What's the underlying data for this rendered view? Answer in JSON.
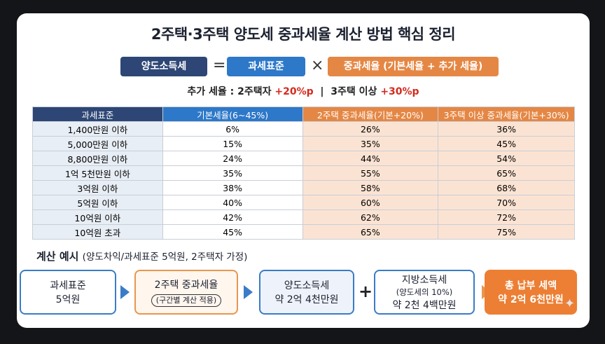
{
  "title": "2주택·3주택 양도세 중과세율 계산 방법 핵심 정리",
  "formula": {
    "left": "양도소득세",
    "eq": "=",
    "mid": "과세표준",
    "times": "×",
    "right": "중과세율 (기본세율 + 추가 세율)",
    "colors": {
      "left": "#2d4675",
      "mid": "#2d78c8",
      "right": "#e58744"
    }
  },
  "extra": {
    "prefix": "추가 세율 : 2주택자",
    "two_rate": "+20%p",
    "sep": "|",
    "three_label": "3주택 이상",
    "three_rate": "+30%p"
  },
  "table": {
    "headers": [
      "과세표준",
      "기본세율(6~45%)",
      "2주택 중과세율(기본+20%)",
      "3주택 이상 중과세율(기본+30%)"
    ],
    "rows": [
      [
        "1,400만원 이하",
        "6%",
        "26%",
        "36%"
      ],
      [
        "5,000만원 이하",
        "15%",
        "35%",
        "45%"
      ],
      [
        "8,800만원 이하",
        "24%",
        "44%",
        "54%"
      ],
      [
        "1억 5천만원 이하",
        "35%",
        "55%",
        "65%"
      ],
      [
        "3억원 이하",
        "38%",
        "58%",
        "68%"
      ],
      [
        "5억원 이하",
        "40%",
        "60%",
        "70%"
      ],
      [
        "10억원 이하",
        "42%",
        "62%",
        "72%"
      ],
      [
        "10억원 초과",
        "45%",
        "65%",
        "75%"
      ]
    ]
  },
  "example": {
    "title": "계산 예시",
    "subtitle": "(양도차익/과세표준 5억원, 2주택자 가정)",
    "step1": {
      "line1": "과세표준",
      "line2": "5억원"
    },
    "step2": {
      "line1": "2주택 중과세율",
      "pill": "(구간별 계산 적용)"
    },
    "step3": {
      "line1": "양도소득세",
      "line2": "약 2억 4천만원"
    },
    "plus": "+",
    "step4": {
      "line1": "지방소득세",
      "line2": "(양도세의 10%)",
      "line3": "약 2천 4백만원"
    },
    "step5": {
      "line1": "총 납부 세액",
      "line2": "약 2억 6천만원"
    }
  }
}
